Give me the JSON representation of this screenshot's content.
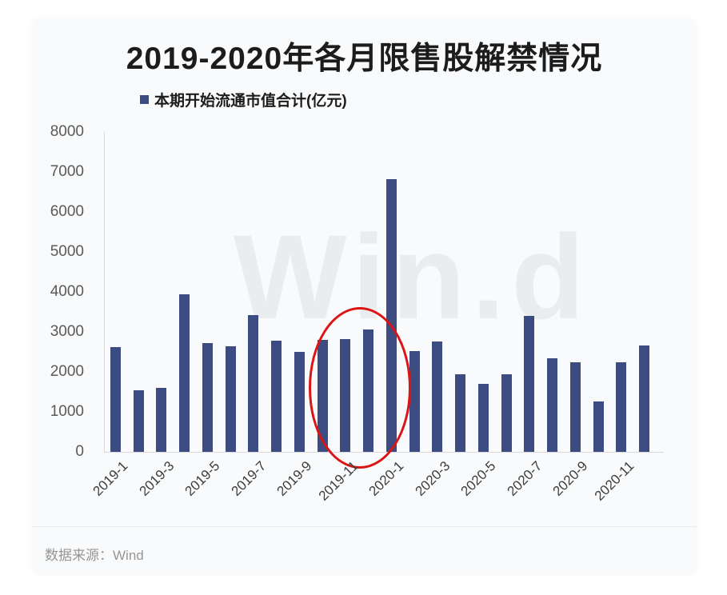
{
  "chart": {
    "title": "2019-2020年各月限售股解禁情况",
    "legend_label": "本期开始流通市值合计(亿元)",
    "watermark": "Win.d",
    "source": "数据来源：Wind",
    "colors": {
      "bar": "#3c4c80",
      "annotation": "#dd1414",
      "axis_line": "#d9d9d9",
      "watermark": "#ebecee",
      "card_background": "#f9fafb"
    }
  },
  "chart_data": {
    "type": "bar",
    "title": "2019-2020年各月限售股解禁情况",
    "legend": [
      "本期开始流通市值合计(亿元)"
    ],
    "legend_position": "top-left",
    "grid": false,
    "categories": [
      "2019-1",
      "2019-2",
      "2019-3",
      "2019-4",
      "2019-5",
      "2019-6",
      "2019-7",
      "2019-8",
      "2019-9",
      "2019-10",
      "2019-11",
      "2019-12",
      "2020-1",
      "2020-2",
      "2020-3",
      "2020-4",
      "2020-5",
      "2020-6",
      "2020-7",
      "2020-8",
      "2020-9",
      "2020-10",
      "2020-11",
      "2020-12"
    ],
    "values": [
      2620,
      1550,
      1600,
      3950,
      2730,
      2650,
      3420,
      2780,
      2510,
      2810,
      2820,
      3060,
      6820,
      2520,
      2770,
      1950,
      1700,
      1940,
      3400,
      2350,
      2250,
      1260,
      2240,
      2660
    ],
    "xlabel": "",
    "ylabel": "",
    "ylim": [
      0,
      8000
    ],
    "ytick_step": 1000,
    "x_tick_labels_shown": [
      "2019-1",
      "2019-3",
      "2019-5",
      "2019-7",
      "2019-9",
      "2019-11",
      "2020-1",
      "2020-3",
      "2020-5",
      "2020-7",
      "2020-9",
      "2020-11"
    ],
    "annotation": {
      "shape": "ellipse",
      "highlights": [
        "2019-10",
        "2019-11",
        "2019-12"
      ],
      "color": "#dd1414"
    },
    "watermark": "Win.d",
    "source": "数据来源：Wind"
  }
}
